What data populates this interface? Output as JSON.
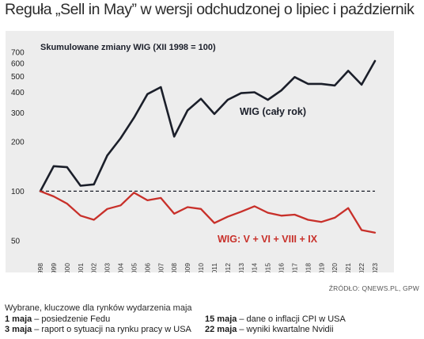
{
  "header": {
    "title": "Reguła „Sell in May” w wersji odchudzonej o lipiec i październik"
  },
  "chart_data": {
    "type": "line",
    "title": "Skumulowane zmiany WIG (XII 1998 = 100)",
    "xlabel": "",
    "ylabel": "",
    "x": [
      "1998",
      "1999",
      "2000",
      "2001",
      "2002",
      "2003",
      "2004",
      "2005",
      "2006",
      "2007",
      "2008",
      "2009",
      "2010",
      "2011",
      "2012",
      "2013",
      "2014",
      "2015",
      "2016",
      "2017",
      "2018",
      "2019",
      "2020",
      "2021",
      "2022",
      "2023"
    ],
    "yscale": "log",
    "ylim": [
      40,
      800
    ],
    "yticks": [
      50,
      100,
      200,
      300,
      400,
      500,
      600,
      700
    ],
    "grid": false,
    "reference_line": {
      "y": 100,
      "style": "dashed"
    },
    "series": [
      {
        "name": "WIG (cały rok)",
        "color": "#1b1f2a",
        "values": [
          100,
          142,
          140,
          108,
          110,
          165,
          210,
          280,
          390,
          430,
          215,
          310,
          365,
          295,
          360,
          395,
          400,
          360,
          410,
          495,
          450,
          450,
          440,
          540,
          445,
          620
        ]
      },
      {
        "name": "WIG: V + VI + VIII + IX",
        "color": "#c8302a",
        "values": [
          100,
          93,
          84,
          71,
          67,
          78,
          82,
          98,
          88,
          91,
          73,
          80,
          78,
          64,
          70,
          75,
          81,
          74,
          71,
          72,
          67,
          65,
          69,
          79,
          58,
          56
        ]
      }
    ]
  },
  "source": "ŹRÓDŁO: QNEWS.PL, GPW",
  "events": {
    "intro": "Wybrane, kluczowe dla rynków wydarzenia maja",
    "left": [
      {
        "date": "1 maja",
        "text": "posiedzenie Fedu"
      },
      {
        "date": "3 maja",
        "text": "raport o sytuacji na rynku pracy w USA"
      }
    ],
    "right": [
      {
        "date": "15 maja",
        "text": "dane o inflacji CPI w USA"
      },
      {
        "date": "22 maja",
        "text": "wyniki kwartalne Nvidii"
      }
    ]
  }
}
